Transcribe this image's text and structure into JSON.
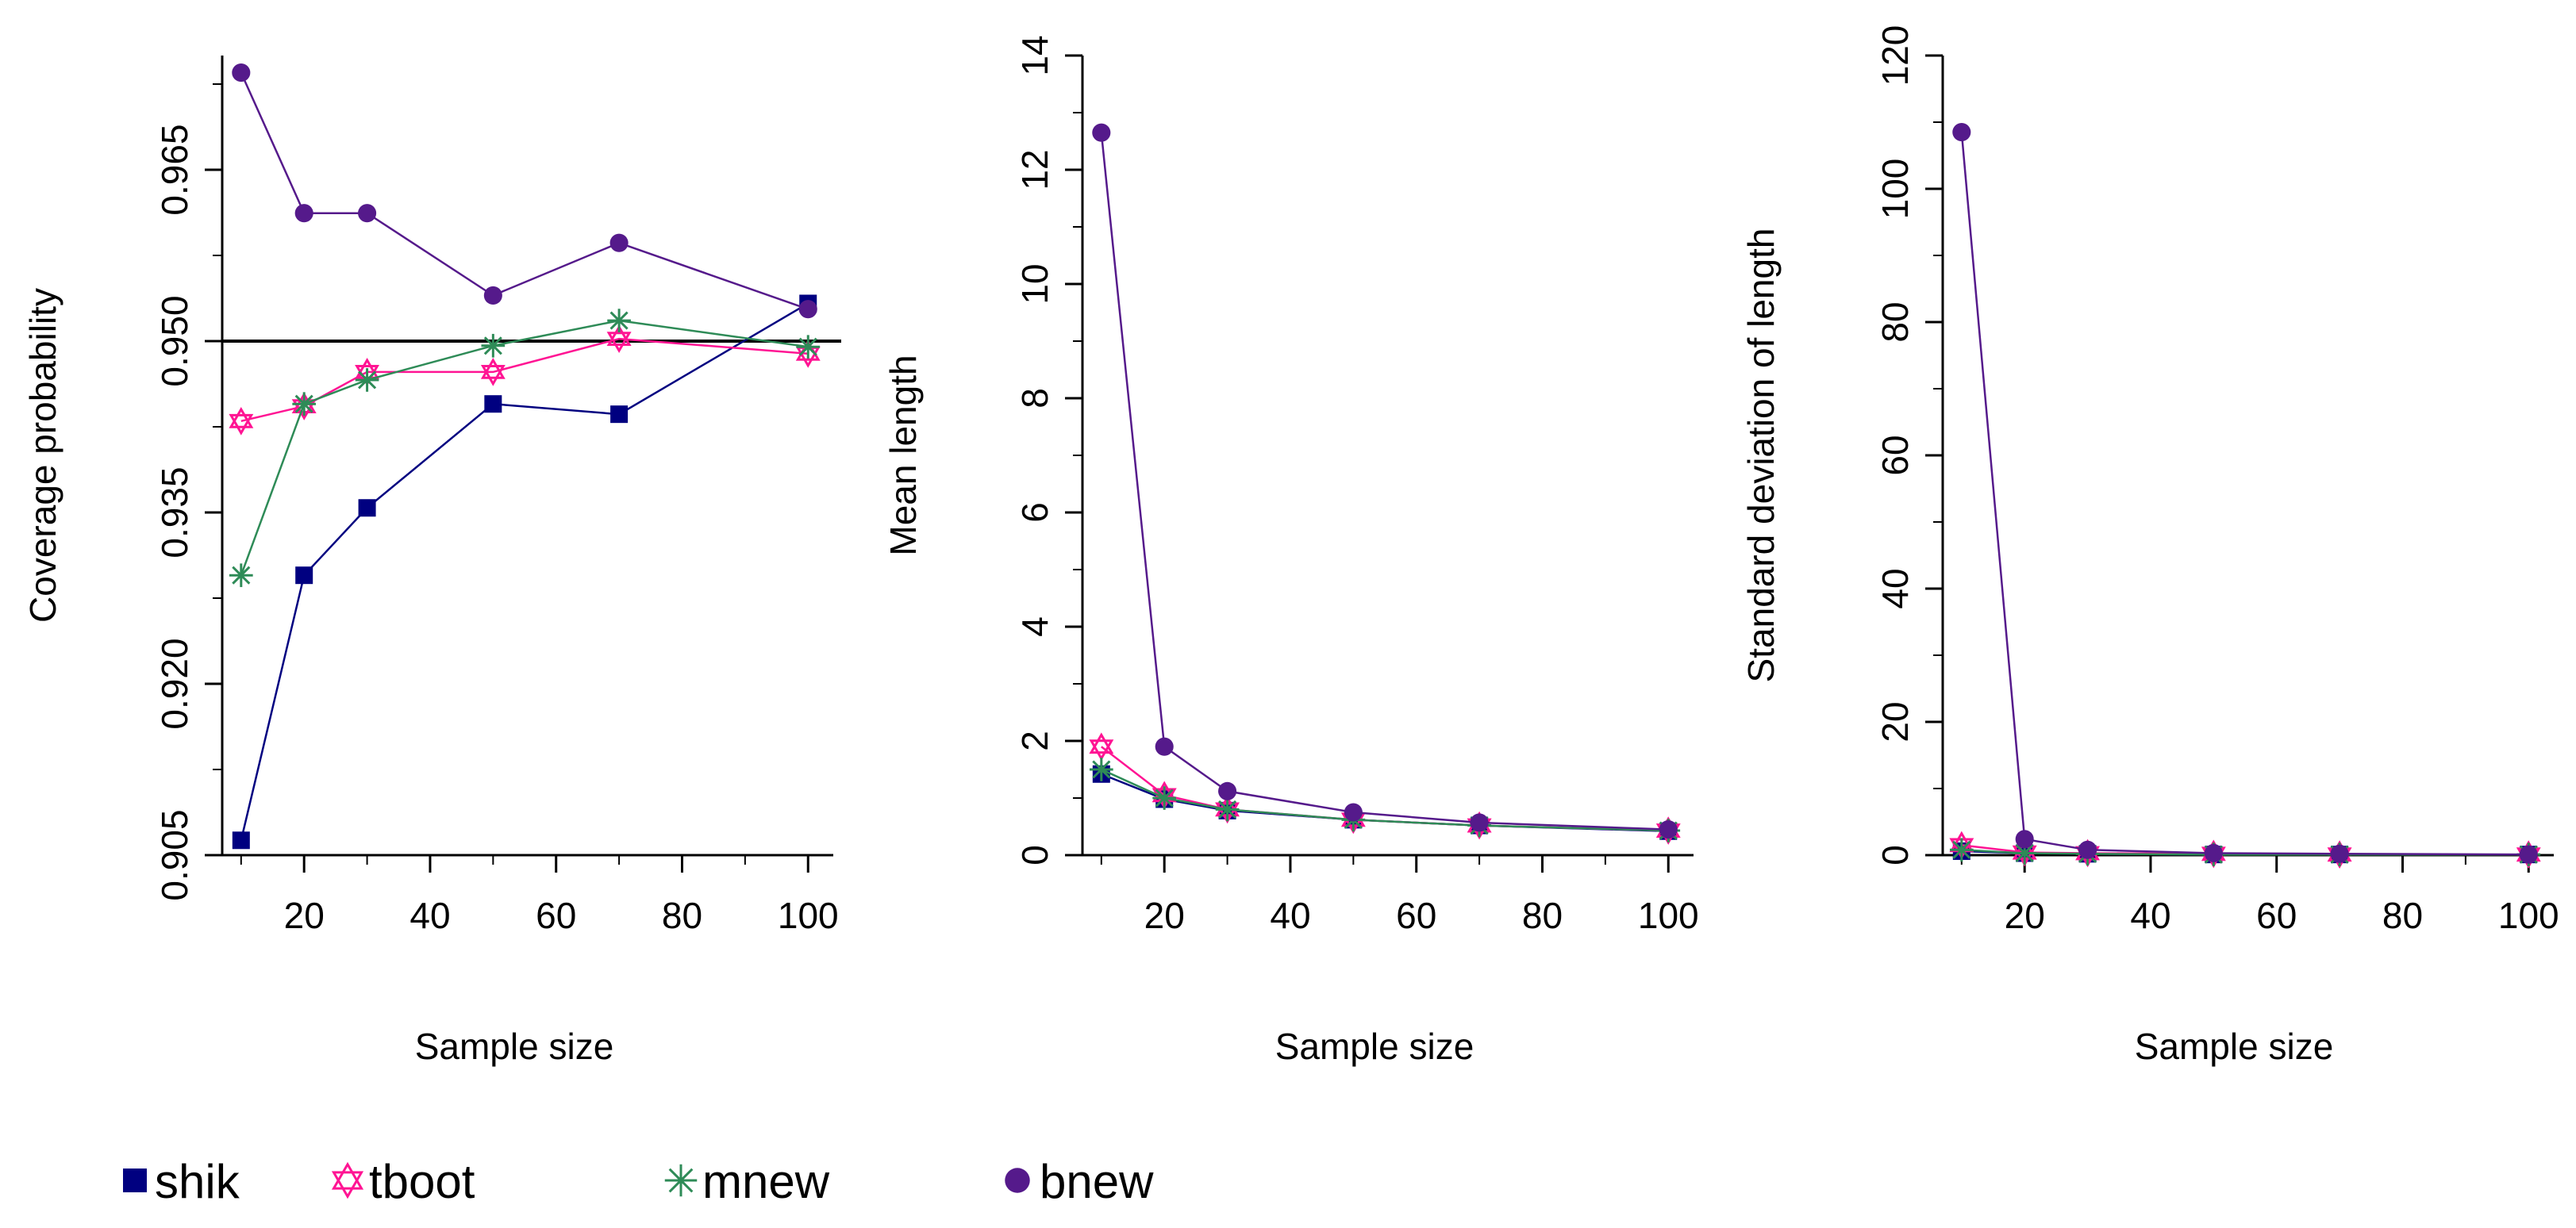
{
  "legend": [
    {
      "name": "shik",
      "color": "#000080",
      "marker": "square"
    },
    {
      "name": "tboot",
      "color": "#FF1493",
      "marker": "star-of-david"
    },
    {
      "name": "mnew",
      "color": "#2E8B57",
      "marker": "asterisk"
    },
    {
      "name": "bnew",
      "color": "#551A8B",
      "marker": "circle"
    }
  ],
  "chart_data": [
    {
      "type": "line",
      "xlabel": "Sample size",
      "ylabel": "Coverage probability",
      "x": [
        10,
        20,
        30,
        50,
        70,
        100
      ],
      "xlim": [
        7,
        104
      ],
      "xticks": [
        20,
        40,
        60,
        80,
        100
      ],
      "xminor": [
        10,
        30,
        50,
        70,
        90
      ],
      "ylim": [
        0.905,
        0.975
      ],
      "yticks": [
        "0.905",
        "0.920",
        "0.935",
        "0.950",
        "0.965"
      ],
      "yminor": [
        0.9125,
        0.9275,
        0.9425,
        0.9575,
        0.9725
      ],
      "reference_line": 0.95,
      "series": [
        {
          "name": "shik",
          "values": [
            0.9063,
            0.9295,
            0.9354,
            0.9445,
            0.9436,
            0.9533
          ]
        },
        {
          "name": "tboot",
          "values": [
            0.943,
            0.9443,
            0.9473,
            0.9473,
            0.9502,
            0.9489
          ]
        },
        {
          "name": "mnew",
          "values": [
            0.9295,
            0.9445,
            0.9466,
            0.9496,
            0.9518,
            0.9495
          ]
        },
        {
          "name": "bnew",
          "values": [
            0.9735,
            0.9612,
            0.9612,
            0.954,
            0.9586,
            0.9528
          ]
        }
      ]
    },
    {
      "type": "line",
      "xlabel": "Sample size",
      "ylabel": "Mean length",
      "x": [
        10,
        20,
        30,
        50,
        70,
        100
      ],
      "xlim": [
        7,
        104
      ],
      "xticks": [
        20,
        40,
        60,
        80,
        100
      ],
      "xminor": [
        10,
        30,
        50,
        70,
        90
      ],
      "ylim": [
        0,
        14
      ],
      "yticks": [
        "0",
        "2",
        "4",
        "6",
        "8",
        "10",
        "12",
        "14"
      ],
      "yminor": [
        1,
        3,
        5,
        7,
        9,
        11,
        13
      ],
      "series": [
        {
          "name": "shik",
          "values": [
            1.42,
            0.98,
            0.78,
            0.62,
            0.52,
            0.42
          ]
        },
        {
          "name": "tboot",
          "values": [
            1.9,
            1.05,
            0.8,
            0.62,
            0.52,
            0.43
          ]
        },
        {
          "name": "mnew",
          "values": [
            1.5,
            1.0,
            0.8,
            0.62,
            0.52,
            0.43
          ]
        },
        {
          "name": "bnew",
          "values": [
            12.65,
            1.9,
            1.12,
            0.75,
            0.57,
            0.45
          ]
        }
      ]
    },
    {
      "type": "line",
      "xlabel": "Sample size",
      "ylabel": "Standard deviation of length",
      "x": [
        10,
        20,
        30,
        50,
        70,
        100
      ],
      "xlim": [
        7,
        104
      ],
      "xticks": [
        20,
        40,
        60,
        80,
        100
      ],
      "xminor": [
        10,
        30,
        50,
        70,
        90
      ],
      "ylim": [
        0,
        120
      ],
      "yticks": [
        "0",
        "20",
        "40",
        "60",
        "80",
        "100",
        "120"
      ],
      "yminor": [
        10,
        30,
        50,
        70,
        90,
        110
      ],
      "series": [
        {
          "name": "shik",
          "values": [
            0.6,
            0.3,
            0.2,
            0.1,
            0.1,
            0.1
          ]
        },
        {
          "name": "tboot",
          "values": [
            1.5,
            0.4,
            0.3,
            0.2,
            0.1,
            0.1
          ]
        },
        {
          "name": "mnew",
          "values": [
            0.8,
            0.3,
            0.2,
            0.1,
            0.1,
            0.1
          ]
        },
        {
          "name": "bnew",
          "values": [
            108.5,
            2.4,
            0.8,
            0.3,
            0.2,
            0.1
          ]
        }
      ]
    }
  ]
}
